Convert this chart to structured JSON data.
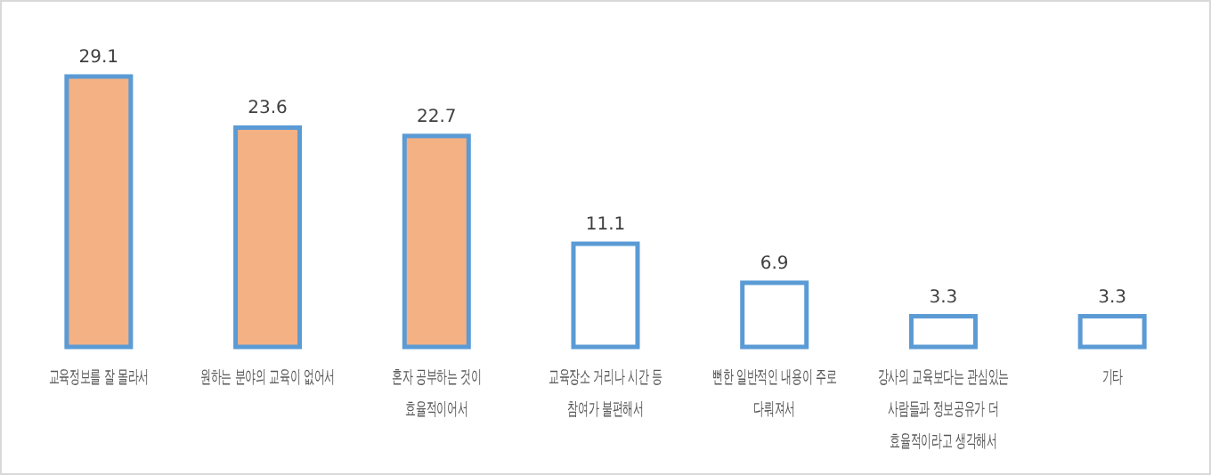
{
  "chart_data": {
    "type": "bar",
    "categories": [
      "교육정보를 잘 몰라서",
      "원하는 분야의 교육이 없어서",
      "혼자 공부하는 것이\n효율적이어서",
      "교육장소 거리나 시간 등\n참여가 불편해서",
      "뻔한 일반적인 내용이 주로\n다뤄져서",
      "강사의 교육보다는 관심있는\n사람들과 정보공유가 더\n효율적이라고 생각해서",
      "기타"
    ],
    "values": [
      29.1,
      23.6,
      22.7,
      11.1,
      6.9,
      3.3,
      3.3
    ],
    "colors": [
      "#f4b183",
      "#f4b183",
      "#f4b183",
      "#ffffff",
      "#ffffff",
      "#ffffff",
      "#ffffff"
    ],
    "data_labels": true
  }
}
